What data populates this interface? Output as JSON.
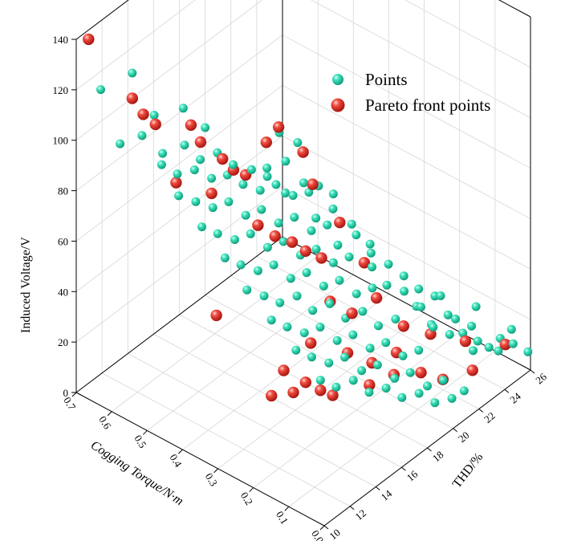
{
  "chart_data": {
    "type": "scatter",
    "projection": "3d",
    "x_axis": {
      "label": "Cogging Torque/N·m",
      "range": [
        0.0,
        0.7
      ],
      "ticks": [
        "0.0",
        "0.1",
        "0.2",
        "0.3",
        "0.4",
        "0.5",
        "0.6",
        "0.7"
      ]
    },
    "y_axis": {
      "label": "THD/%",
      "range": [
        10,
        26
      ],
      "ticks": [
        "10",
        "12",
        "14",
        "16",
        "18",
        "20",
        "22",
        "24",
        "26"
      ]
    },
    "z_axis": {
      "label": "Induced Voltage/V",
      "range": [
        0,
        140
      ],
      "ticks": [
        "0",
        "20",
        "40",
        "60",
        "80",
        "100",
        "120",
        "140"
      ]
    },
    "grid": true,
    "legend": {
      "position": "top-right",
      "entries": [
        "Points",
        "Pareto front points"
      ]
    },
    "series": [
      {
        "name": "Points",
        "color": "#1fc9a4",
        "points": [
          [
            0.66,
            10.8,
            120
          ],
          [
            0.6,
            11.6,
            128
          ],
          [
            0.56,
            12.2,
            112
          ],
          [
            0.5,
            12.8,
            117
          ],
          [
            0.46,
            13.4,
            110
          ],
          [
            0.62,
            11.2,
            100
          ],
          [
            0.58,
            11.8,
            104
          ],
          [
            0.54,
            12.3,
            98
          ],
          [
            0.5,
            12.9,
            102
          ],
          [
            0.47,
            13.3,
            97
          ],
          [
            0.44,
            13.8,
            100
          ],
          [
            0.41,
            14.2,
            96
          ],
          [
            0.38,
            14.8,
            94
          ],
          [
            0.35,
            15.2,
            92
          ],
          [
            0.32,
            15.8,
            98
          ],
          [
            0.55,
            12.5,
            92
          ],
          [
            0.52,
            12.9,
            89
          ],
          [
            0.49,
            13.4,
            91
          ],
          [
            0.46,
            13.9,
            88
          ],
          [
            0.43,
            14.3,
            90
          ],
          [
            0.4,
            14.7,
            87
          ],
          [
            0.37,
            15.2,
            85
          ],
          [
            0.34,
            15.6,
            88
          ],
          [
            0.31,
            16.1,
            84
          ],
          [
            0.28,
            16.5,
            86
          ],
          [
            0.52,
            13.0,
            80
          ],
          [
            0.49,
            13.5,
            78
          ],
          [
            0.46,
            14.0,
            76
          ],
          [
            0.43,
            14.4,
            79
          ],
          [
            0.4,
            14.9,
            74
          ],
          [
            0.37,
            15.3,
            77
          ],
          [
            0.34,
            15.8,
            72
          ],
          [
            0.31,
            16.2,
            75
          ],
          [
            0.28,
            16.7,
            70
          ],
          [
            0.25,
            17.1,
            73
          ],
          [
            0.48,
            13.7,
            68
          ],
          [
            0.45,
            14.1,
            66
          ],
          [
            0.42,
            14.6,
            64
          ],
          [
            0.39,
            15.0,
            67
          ],
          [
            0.36,
            15.5,
            62
          ],
          [
            0.33,
            15.9,
            65
          ],
          [
            0.3,
            16.4,
            60
          ],
          [
            0.27,
            16.8,
            63
          ],
          [
            0.24,
            17.3,
            58
          ],
          [
            0.21,
            17.7,
            61
          ],
          [
            0.44,
            14.4,
            56
          ],
          [
            0.41,
            14.8,
            54
          ],
          [
            0.38,
            15.3,
            52
          ],
          [
            0.35,
            15.7,
            55
          ],
          [
            0.32,
            16.2,
            50
          ],
          [
            0.29,
            16.6,
            53
          ],
          [
            0.26,
            17.1,
            48
          ],
          [
            0.23,
            17.5,
            51
          ],
          [
            0.2,
            18.0,
            46
          ],
          [
            0.17,
            18.4,
            49
          ],
          [
            0.4,
            15.0,
            44
          ],
          [
            0.37,
            15.5,
            42
          ],
          [
            0.34,
            15.9,
            40
          ],
          [
            0.31,
            16.4,
            43
          ],
          [
            0.28,
            16.8,
            38
          ],
          [
            0.25,
            17.3,
            41
          ],
          [
            0.22,
            17.7,
            36
          ],
          [
            0.19,
            18.2,
            39
          ],
          [
            0.16,
            18.6,
            34
          ],
          [
            0.13,
            19.1,
            37
          ],
          [
            0.36,
            15.8,
            32
          ],
          [
            0.33,
            16.2,
            30
          ],
          [
            0.3,
            16.7,
            28
          ],
          [
            0.27,
            17.1,
            31
          ],
          [
            0.24,
            17.6,
            26
          ],
          [
            0.21,
            18.0,
            29
          ],
          [
            0.18,
            18.5,
            24
          ],
          [
            0.15,
            18.9,
            27
          ],
          [
            0.12,
            19.4,
            22
          ],
          [
            0.09,
            19.8,
            25
          ],
          [
            0.32,
            16.6,
            20
          ],
          [
            0.29,
            17.0,
            18
          ],
          [
            0.26,
            17.5,
            16
          ],
          [
            0.23,
            17.9,
            19
          ],
          [
            0.2,
            18.4,
            14
          ],
          [
            0.17,
            18.8,
            17
          ],
          [
            0.14,
            19.3,
            12
          ],
          [
            0.11,
            19.7,
            15
          ],
          [
            0.08,
            20.2,
            10
          ],
          [
            0.05,
            20.6,
            13
          ],
          [
            0.28,
            17.4,
            8
          ],
          [
            0.25,
            17.8,
            6
          ],
          [
            0.22,
            18.3,
            9
          ],
          [
            0.19,
            18.7,
            5
          ],
          [
            0.16,
            19.2,
            7
          ],
          [
            0.13,
            19.6,
            4
          ],
          [
            0.1,
            20.1,
            6
          ],
          [
            0.07,
            20.5,
            3
          ],
          [
            0.04,
            21.0,
            5
          ],
          [
            0.02,
            21.4,
            8
          ],
          [
            0.1,
            21.2,
            28
          ],
          [
            0.08,
            21.8,
            32
          ],
          [
            0.06,
            22.4,
            24
          ],
          [
            0.04,
            23.0,
            20
          ],
          [
            0.03,
            23.6,
            16
          ],
          [
            0.12,
            20.8,
            36
          ],
          [
            0.09,
            21.5,
            40
          ],
          [
            0.07,
            22.1,
            30
          ],
          [
            0.05,
            22.8,
            26
          ],
          [
            0.02,
            24.2,
            18
          ],
          [
            0.18,
            19.8,
            44
          ],
          [
            0.15,
            20.3,
            48
          ],
          [
            0.13,
            20.9,
            42
          ],
          [
            0.11,
            21.6,
            38
          ],
          [
            0.2,
            19.2,
            52
          ],
          [
            0.26,
            18.2,
            60
          ],
          [
            0.23,
            18.8,
            64
          ],
          [
            0.21,
            19.4,
            56
          ],
          [
            0.3,
            17.6,
            70
          ],
          [
            0.27,
            18.1,
            74
          ],
          [
            0.35,
            16.6,
            80
          ],
          [
            0.32,
            17.2,
            84
          ],
          [
            0.38,
            16.0,
            90
          ],
          [
            0.36,
            16.4,
            104
          ],
          [
            0.33,
            17.0,
            100
          ],
          [
            0.3,
            17.8,
            82
          ],
          [
            0.28,
            18.4,
            78
          ],
          [
            0.25,
            19.0,
            66
          ],
          [
            0.22,
            19.6,
            58
          ],
          [
            0.19,
            20.2,
            50
          ],
          [
            0.16,
            20.6,
            40
          ],
          [
            0.14,
            21.0,
            34
          ],
          [
            0.12,
            21.6,
            26
          ],
          [
            0.09,
            22.2,
            22
          ],
          [
            0.06,
            23.2,
            14
          ],
          [
            0.04,
            24.6,
            10
          ],
          [
            0.02,
            25.2,
            12
          ],
          [
            0.0,
            25.8,
            8
          ],
          [
            0.01,
            24.8,
            20
          ],
          [
            0.03,
            22.6,
            36
          ]
        ]
      },
      {
        "name": "Pareto front points",
        "color": "#e8332b",
        "points": [
          [
            0.68,
            10.4,
            140
          ],
          [
            0.6,
            11.6,
            118
          ],
          [
            0.58,
            11.9,
            112
          ],
          [
            0.56,
            12.3,
            108
          ],
          [
            0.5,
            13.4,
            108
          ],
          [
            0.48,
            13.6,
            102
          ],
          [
            0.44,
            14.2,
            96
          ],
          [
            0.42,
            14.5,
            92
          ],
          [
            0.46,
            13.9,
            82
          ],
          [
            0.52,
            12.8,
            86
          ],
          [
            0.4,
            14.9,
            90
          ],
          [
            0.36,
            15.4,
            104
          ],
          [
            0.34,
            15.8,
            110
          ],
          [
            0.3,
            16.6,
            100
          ],
          [
            0.28,
            16.8,
            88
          ],
          [
            0.38,
            15.3,
            70
          ],
          [
            0.35,
            15.8,
            66
          ],
          [
            0.32,
            16.3,
            64
          ],
          [
            0.3,
            16.8,
            60
          ],
          [
            0.27,
            17.2,
            58
          ],
          [
            0.24,
            17.8,
            72
          ],
          [
            0.2,
            18.6,
            56
          ],
          [
            0.26,
            17.6,
            40
          ],
          [
            0.22,
            18.2,
            36
          ],
          [
            0.18,
            19.0,
            42
          ],
          [
            0.45,
            14.0,
            34
          ],
          [
            0.14,
            20.0,
            30
          ],
          [
            0.1,
            21.0,
            26
          ],
          [
            0.06,
            22.6,
            20
          ],
          [
            0.02,
            24.6,
            14
          ],
          [
            0.3,
            17.2,
            22
          ],
          [
            0.24,
            18.4,
            18
          ],
          [
            0.2,
            19.2,
            14
          ],
          [
            0.16,
            20.0,
            18
          ],
          [
            0.12,
            20.8,
            10
          ],
          [
            0.34,
            16.2,
            12
          ],
          [
            0.3,
            16.8,
            8
          ],
          [
            0.28,
            17.4,
            4
          ],
          [
            0.32,
            16.4,
            4
          ],
          [
            0.36,
            15.8,
            2
          ],
          [
            0.26,
            17.8,
            2
          ],
          [
            0.2,
            19.0,
            6
          ],
          [
            0.16,
            19.8,
            10
          ],
          [
            0.08,
            21.4,
            8
          ],
          [
            0.04,
            22.6,
            10
          ]
        ]
      }
    ]
  }
}
